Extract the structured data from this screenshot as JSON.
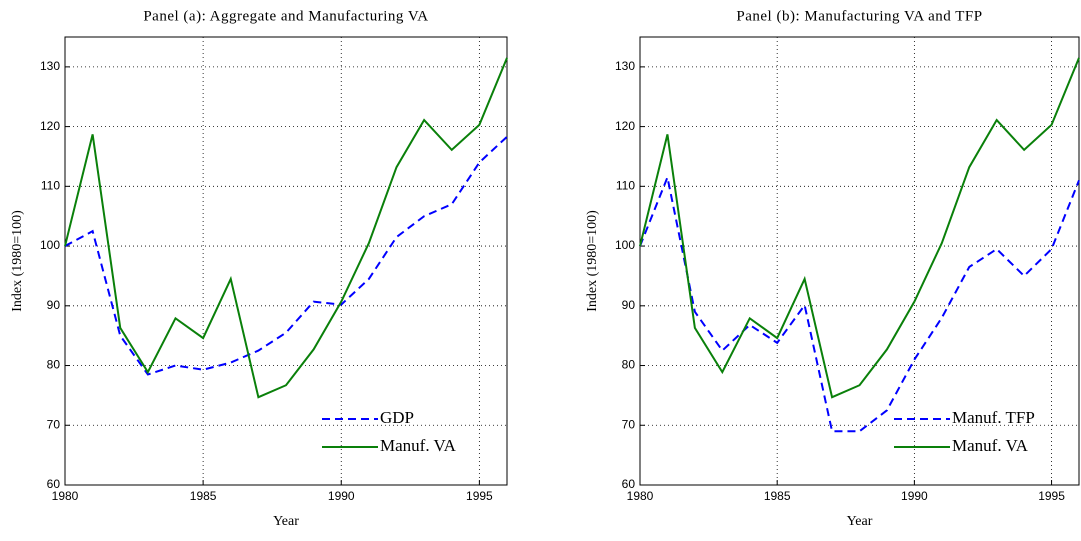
{
  "chart_data": [
    {
      "type": "line",
      "title": "Panel (a): Aggregate and Manufacturing VA",
      "xlabel": "Year",
      "ylabel": "Index (1980=100)",
      "x": [
        1980,
        1981,
        1982,
        1983,
        1984,
        1985,
        1986,
        1987,
        1988,
        1989,
        1990,
        1991,
        1992,
        1993,
        1994,
        1995,
        1996
      ],
      "series": [
        {
          "name": "GDP",
          "color": "#0000ff",
          "dash": true,
          "values": [
            100,
            102.5,
            85,
            78.5,
            80,
            79.3,
            80.5,
            82.5,
            85.5,
            90.7,
            90.2,
            94.5,
            101.5,
            105,
            107,
            114,
            118.3
          ]
        },
        {
          "name": "Manuf. VA",
          "color": "#0a800a",
          "dash": false,
          "values": [
            100,
            118.7,
            86.3,
            78.9,
            87.9,
            84.6,
            94.5,
            74.7,
            76.7,
            82.7,
            90.7,
            100.5,
            113.2,
            121.1,
            116.1,
            120.3,
            131.5
          ]
        }
      ],
      "xlim": [
        1980,
        1996
      ],
      "xticks": [
        1980,
        1985,
        1990,
        1995
      ],
      "ylim": [
        60,
        135
      ],
      "yticks": [
        60,
        70,
        80,
        90,
        100,
        110,
        120,
        130
      ],
      "grid": true,
      "legend": "lower right"
    },
    {
      "type": "line",
      "title": "Panel (b): Manufacturing VA and TFP",
      "xlabel": "Year",
      "ylabel": "Index (1980=100)",
      "x": [
        1980,
        1981,
        1982,
        1983,
        1984,
        1985,
        1986,
        1987,
        1988,
        1989,
        1990,
        1991,
        1992,
        1993,
        1994,
        1995,
        1996
      ],
      "series": [
        {
          "name": "Manuf. TFP",
          "color": "#0000ff",
          "dash": true,
          "values": [
            100,
            111.5,
            89,
            82.5,
            86.8,
            83.8,
            90.1,
            69,
            69,
            72.5,
            81,
            88,
            96.5,
            99.5,
            95,
            99.5,
            111
          ]
        },
        {
          "name": "Manuf. VA",
          "color": "#0a800a",
          "dash": false,
          "values": [
            100,
            118.7,
            86.3,
            78.9,
            87.9,
            84.6,
            94.5,
            74.7,
            76.7,
            82.7,
            90.7,
            100.5,
            113.2,
            121.1,
            116.1,
            120.3,
            131.5
          ]
        }
      ],
      "xlim": [
        1980,
        1996
      ],
      "xticks": [
        1980,
        1985,
        1990,
        1995
      ],
      "ylim": [
        60,
        135
      ],
      "yticks": [
        60,
        70,
        80,
        90,
        100,
        110,
        120,
        130
      ],
      "grid": true,
      "legend": "lower right"
    }
  ]
}
